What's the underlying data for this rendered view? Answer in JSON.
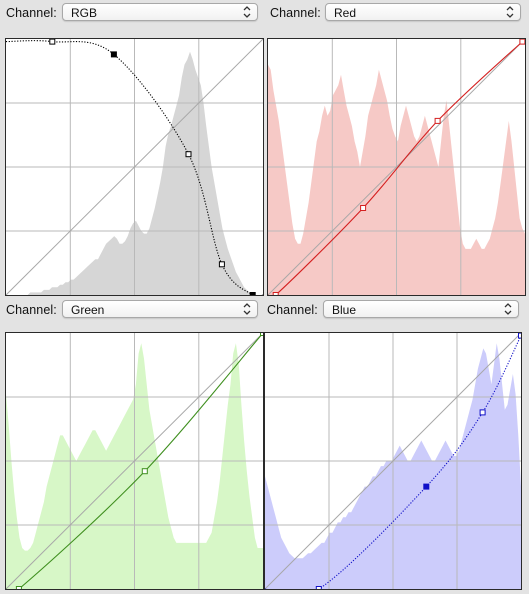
{
  "panels": [
    {
      "id": "rgb",
      "channel_label": "Channel:",
      "selected_channel": "RGB",
      "histogram_color": "#d6d6d6",
      "curve_color": "#000000",
      "curve_dotted": true,
      "control_points": [
        [
          0.18,
          0.99
        ],
        [
          0.42,
          0.94
        ],
        [
          0.71,
          0.55
        ],
        [
          0.84,
          0.12
        ],
        [
          0.96,
          0.0
        ]
      ],
      "filled_points": [
        1,
        4
      ],
      "histogram": [
        0,
        0,
        0,
        0,
        0,
        0,
        0,
        0,
        0,
        1,
        1,
        1,
        1,
        1,
        2,
        2,
        2,
        3,
        3,
        3,
        4,
        4,
        5,
        5,
        6,
        6,
        7,
        8,
        9,
        10,
        11,
        12,
        13,
        14,
        14,
        16,
        18,
        20,
        21,
        22,
        23,
        22,
        20,
        20,
        21,
        23,
        26,
        28,
        29,
        27,
        25,
        24,
        24,
        26,
        30,
        34,
        39,
        44,
        50,
        58,
        63,
        66,
        70,
        74,
        78,
        85,
        90,
        92,
        95,
        92,
        88,
        85,
        82,
        75,
        66,
        58,
        50,
        44,
        38,
        32,
        26,
        22,
        18,
        15,
        12,
        9,
        7,
        5,
        3,
        2,
        1,
        1,
        0,
        0,
        0,
        0
      ]
    },
    {
      "id": "red",
      "channel_label": "Channel:",
      "selected_channel": "Red",
      "histogram_color": "#f6c9c6",
      "curve_color": "#d42020",
      "curve_dotted": false,
      "control_points": [
        [
          0.03,
          0.0
        ],
        [
          0.37,
          0.34
        ],
        [
          0.66,
          0.68
        ],
        [
          0.99,
          0.99
        ]
      ],
      "filled_points": [],
      "histogram": [
        90,
        88,
        80,
        74,
        68,
        60,
        52,
        44,
        36,
        28,
        22,
        20,
        20,
        24,
        30,
        36,
        44,
        52,
        60,
        64,
        70,
        74,
        70,
        72,
        78,
        80,
        82,
        86,
        80,
        74,
        70,
        66,
        60,
        56,
        50,
        56,
        62,
        70,
        74,
        78,
        82,
        88,
        84,
        80,
        76,
        70,
        65,
        62,
        60,
        66,
        70,
        74,
        70,
        66,
        62,
        60,
        62,
        66,
        70,
        66,
        62,
        58,
        54,
        50,
        60,
        70,
        76,
        66,
        56,
        46,
        36,
        26,
        20,
        18,
        18,
        18,
        20,
        22,
        20,
        18,
        18,
        20,
        22,
        26,
        30,
        36,
        44,
        52,
        60,
        68,
        60,
        50,
        40,
        30,
        26,
        24
      ]
    },
    {
      "id": "green",
      "channel_label": "Channel:",
      "selected_channel": "Green",
      "histogram_color": "#d7f7c7",
      "curve_color": "#3f8f1f",
      "curve_dotted": false,
      "control_points": [
        [
          0.05,
          0.0
        ],
        [
          0.54,
          0.46
        ],
        [
          1.0,
          1.0
        ]
      ],
      "filled_points": [],
      "histogram": [
        76,
        64,
        50,
        38,
        28,
        20,
        16,
        15,
        15,
        16,
        18,
        22,
        26,
        30,
        34,
        40,
        44,
        48,
        52,
        56,
        60,
        60,
        58,
        56,
        54,
        52,
        50,
        52,
        54,
        56,
        58,
        60,
        62,
        62,
        60,
        58,
        56,
        54,
        56,
        58,
        60,
        62,
        64,
        66,
        68,
        70,
        72,
        74,
        80,
        92,
        96,
        90,
        80,
        70,
        64,
        58,
        52,
        46,
        40,
        34,
        28,
        24,
        20,
        18,
        18,
        18,
        18,
        18,
        18,
        18,
        18,
        18,
        18,
        18,
        18,
        20,
        22,
        28,
        34,
        42,
        52,
        62,
        72,
        80,
        92,
        96,
        88,
        72,
        58,
        46,
        36,
        28,
        20,
        16,
        16,
        16
      ]
    },
    {
      "id": "blue",
      "channel_label": "Channel:",
      "selected_channel": "Blue",
      "histogram_color": "#ccccfb",
      "curve_color": "#1010c8",
      "curve_dotted": true,
      "control_points": [
        [
          0.21,
          0.0
        ],
        [
          0.63,
          0.4
        ],
        [
          0.85,
          0.69
        ],
        [
          1.0,
          0.99
        ]
      ],
      "filled_points": [
        1
      ],
      "histogram": [
        44,
        40,
        36,
        32,
        28,
        24,
        20,
        18,
        16,
        14,
        13,
        12,
        12,
        12,
        12,
        13,
        14,
        14,
        15,
        16,
        17,
        18,
        18,
        20,
        22,
        22,
        24,
        26,
        26,
        28,
        28,
        30,
        30,
        32,
        34,
        36,
        38,
        40,
        40,
        42,
        44,
        44,
        46,
        48,
        48,
        50,
        50,
        50,
        52,
        54,
        56,
        54,
        52,
        50,
        50,
        52,
        54,
        56,
        58,
        56,
        54,
        52,
        50,
        50,
        52,
        54,
        56,
        58,
        56,
        54,
        52,
        52,
        54,
        58,
        62,
        66,
        70,
        74,
        80,
        86,
        90,
        94,
        92,
        86,
        80,
        88,
        96,
        90,
        80,
        70,
        72,
        78,
        84,
        76,
        60,
        40
      ]
    }
  ]
}
